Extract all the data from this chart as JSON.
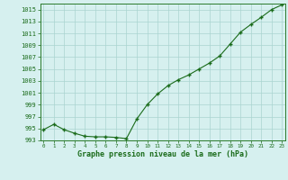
{
  "x": [
    0,
    1,
    2,
    3,
    4,
    5,
    6,
    7,
    8,
    9,
    10,
    11,
    12,
    13,
    14,
    15,
    16,
    17,
    18,
    19,
    20,
    21,
    22,
    23
  ],
  "y": [
    994.8,
    995.7,
    994.8,
    994.2,
    993.7,
    993.6,
    993.6,
    993.5,
    993.3,
    996.6,
    999.0,
    1000.8,
    1002.2,
    1003.2,
    1004.0,
    1005.0,
    1006.0,
    1007.2,
    1009.2,
    1011.2,
    1012.5,
    1013.7,
    1015.0,
    1015.8
  ],
  "ylim": [
    993,
    1016
  ],
  "xlim": [
    -0.3,
    23.3
  ],
  "yticks": [
    993,
    995,
    997,
    999,
    1001,
    1003,
    1005,
    1007,
    1009,
    1011,
    1013,
    1015
  ],
  "xticks": [
    0,
    1,
    2,
    3,
    4,
    5,
    6,
    7,
    8,
    9,
    10,
    11,
    12,
    13,
    14,
    15,
    16,
    17,
    18,
    19,
    20,
    21,
    22,
    23
  ],
  "xlabel": "Graphe pression niveau de la mer (hPa)",
  "line_color": "#1a6b1a",
  "marker_color": "#1a6b1a",
  "bg_color": "#d6f0ef",
  "grid_color": "#aad4d0",
  "axis_label_color": "#1a6b1a",
  "tick_label_color": "#1a6b1a",
  "spine_color": "#2a7a2a",
  "fig_width": 3.2,
  "fig_height": 2.0,
  "dpi": 100
}
